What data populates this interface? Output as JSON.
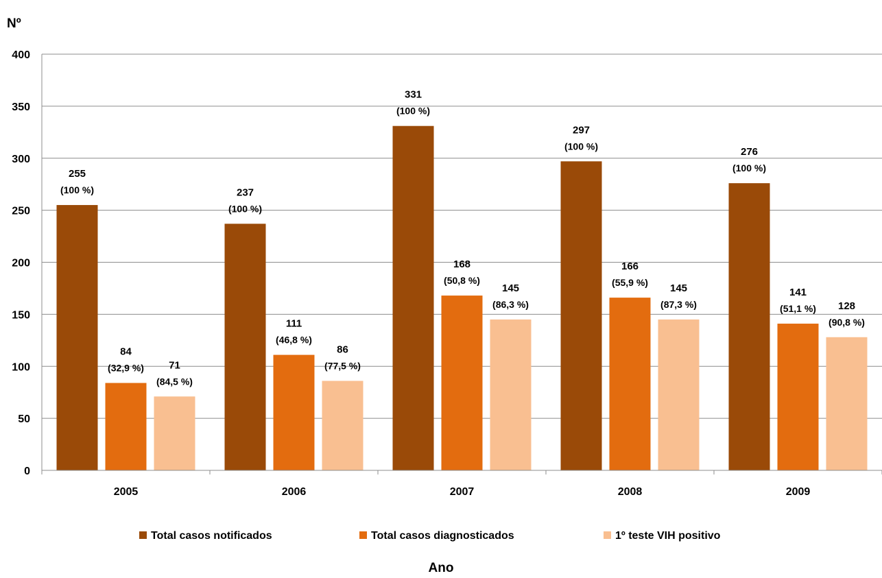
{
  "chart_data": {
    "type": "bar",
    "ylabel": "Nº",
    "xlabel": "Ano",
    "ylim": [
      0,
      400
    ],
    "yticks": [
      0,
      50,
      100,
      150,
      200,
      250,
      300,
      350,
      400
    ],
    "grid": true,
    "legend_position": "bottom",
    "categories": [
      "2005",
      "2006",
      "2007",
      "2008",
      "2009"
    ],
    "series": [
      {
        "name": "Total casos notificados",
        "color": "#9a4a08",
        "values": [
          255,
          237,
          331,
          297,
          276
        ],
        "pct_labels": [
          "(100 %)",
          "(100 %)",
          "(100 %)",
          "(100 %)",
          "(100 %)"
        ]
      },
      {
        "name": "Total casos diagnosticados",
        "color": "#e36c0f",
        "values": [
          84,
          111,
          168,
          166,
          141
        ],
        "pct_labels": [
          "(32,9 %)",
          "(46,8 %)",
          "(50,8 %)",
          "(55,9 %)",
          "(51,1 %)"
        ]
      },
      {
        "name": "1º teste VIH positivo",
        "color": "#f9bf91",
        "values": [
          71,
          86,
          145,
          145,
          128
        ],
        "pct_labels": [
          "(84,5 %)",
          "(77,5 %)",
          "(86,3 %)",
          "(87,3 %)",
          "(90,8 %)"
        ]
      }
    ]
  }
}
